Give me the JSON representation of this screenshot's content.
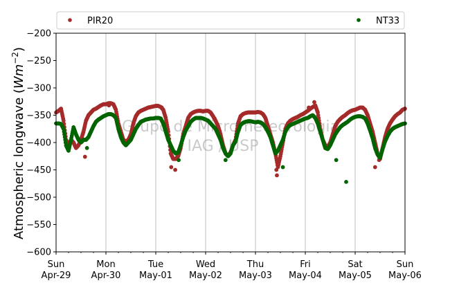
{
  "chart_data": {
    "type": "scatter",
    "ylabel": "Atmospheric longwave",
    "ylabel_unit_base": "W",
    "ylabel_unit_m": "m",
    "ylabel_unit_exp": "−2",
    "ylim": [
      -600,
      -200
    ],
    "yticks": [
      -200,
      -250,
      -300,
      -350,
      -400,
      -450,
      -500,
      -550,
      -600
    ],
    "ytick_labels": [
      "−200",
      "−250",
      "−300",
      "−350",
      "−400",
      "−450",
      "−500",
      "−550",
      "−600"
    ],
    "xlim_days": [
      0,
      7
    ],
    "xticks": [
      {
        "day": 0,
        "line1": "Sun",
        "line2": "Apr-29"
      },
      {
        "day": 1,
        "line1": "Mon",
        "line2": "Apr-30"
      },
      {
        "day": 2,
        "line1": "Tue",
        "line2": "May-01"
      },
      {
        "day": 3,
        "line1": "Wed",
        "line2": "May-02"
      },
      {
        "day": 4,
        "line1": "Thu",
        "line2": "May-03"
      },
      {
        "day": 5,
        "line1": "Fri",
        "line2": "May-04"
      },
      {
        "day": 6,
        "line1": "Sat",
        "line2": "May-05"
      },
      {
        "day": 7,
        "line1": "Sun",
        "line2": "May-06"
      }
    ],
    "grid": "vertical",
    "legend_placement": "top",
    "watermark": [
      "Grupo de Micrometeorologia",
      "IAG / USP"
    ],
    "series": [
      {
        "name": "PIR20",
        "color": "#a52a2a",
        "points": [
          [
            0.0,
            -345
          ],
          [
            0.05,
            -342
          ],
          [
            0.1,
            -338
          ],
          [
            0.15,
            -360
          ],
          [
            0.2,
            -395
          ],
          [
            0.25,
            -405
          ],
          [
            0.3,
            -395
          ],
          [
            0.35,
            -400
          ],
          [
            0.4,
            -410
          ],
          [
            0.45,
            -405
          ],
          [
            0.5,
            -395
          ],
          [
            0.55,
            -380
          ],
          [
            0.6,
            -360
          ],
          [
            0.65,
            -350
          ],
          [
            0.7,
            -345
          ],
          [
            0.75,
            -340
          ],
          [
            0.8,
            -338
          ],
          [
            0.85,
            -335
          ],
          [
            0.9,
            -332
          ],
          [
            0.95,
            -330
          ],
          [
            1.0,
            -330
          ],
          [
            1.05,
            -328
          ],
          [
            1.1,
            -328
          ],
          [
            1.15,
            -330
          ],
          [
            1.2,
            -340
          ],
          [
            1.25,
            -365
          ],
          [
            1.3,
            -380
          ],
          [
            1.35,
            -395
          ],
          [
            1.4,
            -398
          ],
          [
            1.45,
            -395
          ],
          [
            1.5,
            -385
          ],
          [
            1.55,
            -365
          ],
          [
            1.6,
            -352
          ],
          [
            1.65,
            -345
          ],
          [
            1.7,
            -342
          ],
          [
            1.75,
            -340
          ],
          [
            1.8,
            -338
          ],
          [
            1.85,
            -336
          ],
          [
            1.9,
            -335
          ],
          [
            1.95,
            -334
          ],
          [
            2.0,
            -333
          ],
          [
            2.05,
            -333
          ],
          [
            2.1,
            -335
          ],
          [
            2.15,
            -340
          ],
          [
            2.2,
            -355
          ],
          [
            2.25,
            -380
          ],
          [
            2.3,
            -420
          ],
          [
            2.35,
            -430
          ],
          [
            2.4,
            -430
          ],
          [
            2.45,
            -425
          ],
          [
            2.5,
            -410
          ],
          [
            2.55,
            -385
          ],
          [
            2.6,
            -370
          ],
          [
            2.65,
            -355
          ],
          [
            2.7,
            -348
          ],
          [
            2.75,
            -345
          ],
          [
            2.8,
            -343
          ],
          [
            2.85,
            -342
          ],
          [
            2.9,
            -342
          ],
          [
            2.95,
            -343
          ],
          [
            3.0,
            -342
          ],
          [
            3.05,
            -342
          ],
          [
            3.1,
            -345
          ],
          [
            3.15,
            -352
          ],
          [
            3.2,
            -360
          ],
          [
            3.25,
            -370
          ],
          [
            3.3,
            -385
          ],
          [
            3.35,
            -405
          ],
          [
            3.4,
            -420
          ],
          [
            3.45,
            -425
          ],
          [
            3.5,
            -418
          ],
          [
            3.55,
            -405
          ],
          [
            3.6,
            -395
          ],
          [
            3.65,
            -365
          ],
          [
            3.7,
            -352
          ],
          [
            3.75,
            -348
          ],
          [
            3.8,
            -346
          ],
          [
            3.85,
            -345
          ],
          [
            3.9,
            -345
          ],
          [
            3.95,
            -345
          ],
          [
            4.0,
            -345
          ],
          [
            4.05,
            -344
          ],
          [
            4.1,
            -345
          ],
          [
            4.15,
            -348
          ],
          [
            4.2,
            -355
          ],
          [
            4.25,
            -370
          ],
          [
            4.3,
            -385
          ],
          [
            4.35,
            -400
          ],
          [
            4.4,
            -420
          ],
          [
            4.45,
            -445
          ],
          [
            4.5,
            -425
          ],
          [
            4.55,
            -400
          ],
          [
            4.6,
            -375
          ],
          [
            4.65,
            -365
          ],
          [
            4.7,
            -360
          ],
          [
            4.75,
            -357
          ],
          [
            4.8,
            -355
          ],
          [
            4.85,
            -353
          ],
          [
            4.9,
            -350
          ],
          [
            4.95,
            -348
          ],
          [
            5.0,
            -345
          ],
          [
            5.05,
            -342
          ],
          [
            5.1,
            -338
          ],
          [
            5.15,
            -335
          ],
          [
            5.2,
            -332
          ],
          [
            5.25,
            -345
          ],
          [
            5.3,
            -375
          ],
          [
            5.35,
            -395
          ],
          [
            5.4,
            -405
          ],
          [
            5.45,
            -408
          ],
          [
            5.5,
            -400
          ],
          [
            5.55,
            -385
          ],
          [
            5.6,
            -370
          ],
          [
            5.65,
            -362
          ],
          [
            5.7,
            -357
          ],
          [
            5.75,
            -353
          ],
          [
            5.8,
            -350
          ],
          [
            5.85,
            -346
          ],
          [
            5.9,
            -343
          ],
          [
            5.95,
            -341
          ],
          [
            6.0,
            -340
          ],
          [
            6.05,
            -338
          ],
          [
            6.1,
            -336
          ],
          [
            6.15,
            -336
          ],
          [
            6.2,
            -340
          ],
          [
            6.25,
            -350
          ],
          [
            6.3,
            -365
          ],
          [
            6.35,
            -380
          ],
          [
            6.4,
            -400
          ],
          [
            6.45,
            -420
          ],
          [
            6.5,
            -430
          ],
          [
            6.55,
            -410
          ],
          [
            6.6,
            -390
          ],
          [
            6.65,
            -375
          ],
          [
            6.7,
            -365
          ],
          [
            6.75,
            -358
          ],
          [
            6.8,
            -352
          ],
          [
            6.85,
            -348
          ],
          [
            6.9,
            -345
          ],
          [
            6.95,
            -340
          ],
          [
            7.0,
            -338
          ],
          [
            0.58,
            -426
          ],
          [
            1.06,
            -332
          ],
          [
            2.12,
            -336
          ],
          [
            2.31,
            -445
          ],
          [
            2.39,
            -450
          ],
          [
            3.18,
            -356
          ],
          [
            4.43,
            -460
          ],
          [
            4.42,
            -450
          ],
          [
            5.07,
            -336
          ],
          [
            5.18,
            -326
          ],
          [
            6.4,
            -445
          ],
          [
            6.48,
            -432
          ]
        ]
      },
      {
        "name": "NT33",
        "color": "#006400",
        "points": [
          [
            0.0,
            -365
          ],
          [
            0.05,
            -365
          ],
          [
            0.1,
            -366
          ],
          [
            0.15,
            -375
          ],
          [
            0.2,
            -405
          ],
          [
            0.25,
            -415
          ],
          [
            0.3,
            -395
          ],
          [
            0.35,
            -372
          ],
          [
            0.4,
            -385
          ],
          [
            0.45,
            -395
          ],
          [
            0.5,
            -400
          ],
          [
            0.55,
            -395
          ],
          [
            0.6,
            -395
          ],
          [
            0.65,
            -390
          ],
          [
            0.7,
            -380
          ],
          [
            0.75,
            -370
          ],
          [
            0.8,
            -362
          ],
          [
            0.85,
            -358
          ],
          [
            0.9,
            -355
          ],
          [
            0.95,
            -352
          ],
          [
            1.0,
            -350
          ],
          [
            1.05,
            -348
          ],
          [
            1.1,
            -348
          ],
          [
            1.15,
            -350
          ],
          [
            1.2,
            -355
          ],
          [
            1.25,
            -375
          ],
          [
            1.3,
            -390
          ],
          [
            1.35,
            -400
          ],
          [
            1.4,
            -405
          ],
          [
            1.45,
            -400
          ],
          [
            1.5,
            -395
          ],
          [
            1.55,
            -385
          ],
          [
            1.6,
            -375
          ],
          [
            1.65,
            -368
          ],
          [
            1.7,
            -362
          ],
          [
            1.75,
            -360
          ],
          [
            1.8,
            -358
          ],
          [
            1.85,
            -357
          ],
          [
            1.9,
            -356
          ],
          [
            1.95,
            -356
          ],
          [
            2.0,
            -355
          ],
          [
            2.05,
            -355
          ],
          [
            2.1,
            -356
          ],
          [
            2.15,
            -365
          ],
          [
            2.2,
            -380
          ],
          [
            2.25,
            -395
          ],
          [
            2.3,
            -405
          ],
          [
            2.35,
            -415
          ],
          [
            2.4,
            -420
          ],
          [
            2.45,
            -418
          ],
          [
            2.5,
            -405
          ],
          [
            2.55,
            -390
          ],
          [
            2.6,
            -378
          ],
          [
            2.65,
            -370
          ],
          [
            2.7,
            -362
          ],
          [
            2.75,
            -358
          ],
          [
            2.8,
            -355
          ],
          [
            2.85,
            -355
          ],
          [
            2.9,
            -355
          ],
          [
            2.95,
            -356
          ],
          [
            3.0,
            -358
          ],
          [
            3.05,
            -360
          ],
          [
            3.1,
            -365
          ],
          [
            3.15,
            -370
          ],
          [
            3.2,
            -375
          ],
          [
            3.25,
            -385
          ],
          [
            3.3,
            -395
          ],
          [
            3.35,
            -410
          ],
          [
            3.4,
            -420
          ],
          [
            3.45,
            -425
          ],
          [
            3.5,
            -420
          ],
          [
            3.55,
            -405
          ],
          [
            3.6,
            -398
          ],
          [
            3.65,
            -380
          ],
          [
            3.7,
            -368
          ],
          [
            3.75,
            -364
          ],
          [
            3.8,
            -362
          ],
          [
            3.85,
            -361
          ],
          [
            3.9,
            -361
          ],
          [
            3.95,
            -362
          ],
          [
            4.0,
            -363
          ],
          [
            4.05,
            -362
          ],
          [
            4.1,
            -363
          ],
          [
            4.15,
            -366
          ],
          [
            4.2,
            -372
          ],
          [
            4.25,
            -380
          ],
          [
            4.3,
            -390
          ],
          [
            4.35,
            -405
          ],
          [
            4.4,
            -420
          ],
          [
            4.45,
            -415
          ],
          [
            4.5,
            -405
          ],
          [
            4.55,
            -395
          ],
          [
            4.6,
            -380
          ],
          [
            4.65,
            -372
          ],
          [
            4.7,
            -368
          ],
          [
            4.75,
            -366
          ],
          [
            4.8,
            -364
          ],
          [
            4.85,
            -362
          ],
          [
            4.9,
            -360
          ],
          [
            4.95,
            -358
          ],
          [
            5.0,
            -356
          ],
          [
            5.05,
            -355
          ],
          [
            5.1,
            -352
          ],
          [
            5.15,
            -350
          ],
          [
            5.2,
            -355
          ],
          [
            5.25,
            -365
          ],
          [
            5.3,
            -380
          ],
          [
            5.35,
            -395
          ],
          [
            5.4,
            -410
          ],
          [
            5.45,
            -412
          ],
          [
            5.5,
            -405
          ],
          [
            5.55,
            -395
          ],
          [
            5.6,
            -385
          ],
          [
            5.65,
            -378
          ],
          [
            5.7,
            -372
          ],
          [
            5.75,
            -368
          ],
          [
            5.8,
            -365
          ],
          [
            5.85,
            -362
          ],
          [
            5.9,
            -358
          ],
          [
            5.95,
            -355
          ],
          [
            6.0,
            -353
          ],
          [
            6.05,
            -352
          ],
          [
            6.1,
            -352
          ],
          [
            6.15,
            -353
          ],
          [
            6.2,
            -356
          ],
          [
            6.25,
            -365
          ],
          [
            6.3,
            -378
          ],
          [
            6.35,
            -392
          ],
          [
            6.4,
            -410
          ],
          [
            6.45,
            -422
          ],
          [
            6.5,
            -428
          ],
          [
            6.55,
            -412
          ],
          [
            6.6,
            -398
          ],
          [
            6.65,
            -388
          ],
          [
            6.7,
            -380
          ],
          [
            6.75,
            -375
          ],
          [
            6.8,
            -372
          ],
          [
            6.85,
            -370
          ],
          [
            6.9,
            -368
          ],
          [
            6.95,
            -366
          ],
          [
            7.0,
            -365
          ],
          [
            4.55,
            -445
          ],
          [
            5.62,
            -432
          ],
          [
            5.82,
            -472
          ],
          [
            2.46,
            -432
          ],
          [
            3.4,
            -432
          ],
          [
            0.62,
            -410
          ]
        ]
      }
    ]
  }
}
